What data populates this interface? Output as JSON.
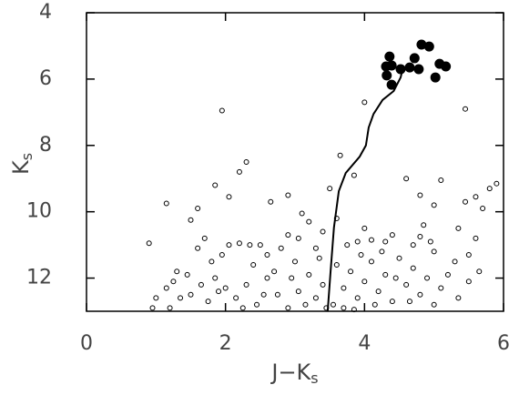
{
  "chart_data": {
    "type": "scatter",
    "xlabel": {
      "main": "J−K",
      "sub": "s"
    },
    "ylabel": {
      "main": "K",
      "sub": "s"
    },
    "xlim": [
      0,
      6
    ],
    "xticks": [
      0,
      2,
      4,
      6
    ],
    "ylim": [
      13,
      4
    ],
    "yticks": [
      4,
      6,
      8,
      10,
      12
    ],
    "series": [
      {
        "marker": "open",
        "color": "#000000",
        "x": [
          0.9,
          1.15,
          1.5,
          1.6,
          1.95,
          2.2,
          2.3,
          2.05,
          1.85,
          2.65,
          2.9,
          3.1,
          3.5,
          3.65,
          4.0,
          3.85,
          4.6,
          4.8,
          5.0,
          5.1,
          5.35,
          5.45,
          5.6,
          5.8,
          5.9,
          5.45,
          5.7,
          5.6,
          5.5,
          5.3,
          5.0,
          4.85,
          4.8,
          4.95,
          4.7,
          4.4,
          4.3,
          4.1,
          4.0,
          3.9,
          3.75,
          3.6,
          3.4,
          3.3,
          3.2,
          3.05,
          2.9,
          2.8,
          2.6,
          2.5,
          2.35,
          2.2,
          2.05,
          1.95,
          1.8,
          1.7,
          1.6,
          1.45,
          1.3,
          1.25,
          1.15,
          1.0,
          0.95,
          1.2,
          1.5,
          1.65,
          1.85,
          2.0,
          2.15,
          2.3,
          2.45,
          2.6,
          2.75,
          2.9,
          3.05,
          3.2,
          3.3,
          3.4,
          3.55,
          3.6,
          3.7,
          3.8,
          3.9,
          4.0,
          4.1,
          4.2,
          4.3,
          4.4,
          4.5,
          4.6,
          4.7,
          4.8,
          4.9,
          5.0,
          5.1,
          5.2,
          5.35,
          5.5,
          5.65,
          3.35,
          3.45,
          3.85,
          4.15,
          2.55,
          1.35,
          1.75,
          2.4,
          2.7,
          3.0,
          3.15,
          4.45,
          4.65,
          4.25,
          3.95,
          3.7,
          2.95,
          2.25,
          1.9
        ],
        "values": [
          10.95,
          9.75,
          10.25,
          9.9,
          6.95,
          8.8,
          8.5,
          9.55,
          9.2,
          9.7,
          9.5,
          10.05,
          9.3,
          8.3,
          6.7,
          8.9,
          9.0,
          9.5,
          9.8,
          9.05,
          10.5,
          9.7,
          9.55,
          9.3,
          9.15,
          6.9,
          9.9,
          10.8,
          11.3,
          11.5,
          11.2,
          10.4,
          10.75,
          10.9,
          11.0,
          10.7,
          10.9,
          10.85,
          10.5,
          10.9,
          11.0,
          10.2,
          10.6,
          11.1,
          10.3,
          10.8,
          10.7,
          11.1,
          11.3,
          11.0,
          11.0,
          10.95,
          11.0,
          11.3,
          11.5,
          10.8,
          11.1,
          11.9,
          11.8,
          12.1,
          12.3,
          12.6,
          12.9,
          12.9,
          12.5,
          12.2,
          12.0,
          12.3,
          12.6,
          12.2,
          12.8,
          12.0,
          12.5,
          12.9,
          12.4,
          11.9,
          12.6,
          12.2,
          12.8,
          11.6,
          12.3,
          11.8,
          12.6,
          12.1,
          11.5,
          12.4,
          11.9,
          12.7,
          11.4,
          12.2,
          11.7,
          12.5,
          12.0,
          12.8,
          12.3,
          11.9,
          12.6,
          12.1,
          11.8,
          11.4,
          12.9,
          12.95,
          12.8,
          12.5,
          12.6,
          12.7,
          11.6,
          11.8,
          11.5,
          12.8,
          12.0,
          12.7,
          11.2,
          11.3,
          12.9,
          12.0,
          12.9,
          12.4
        ]
      },
      {
        "marker": "filled",
        "color": "#000000",
        "x": [
          4.36,
          4.72,
          4.82,
          4.93,
          4.31,
          4.39,
          4.52,
          4.65,
          4.78,
          4.32,
          4.39,
          5.02,
          5.08,
          5.17
        ],
        "values": [
          5.32,
          5.37,
          4.96,
          5.02,
          5.62,
          5.59,
          5.7,
          5.65,
          5.7,
          5.89,
          6.17,
          5.95,
          5.54,
          5.62
        ]
      },
      {
        "marker": "line",
        "color": "#000000",
        "x": [
          3.47,
          3.51,
          3.56,
          3.63,
          3.73,
          3.93,
          4.02,
          4.06,
          4.13,
          4.26,
          4.42,
          4.52,
          4.56
        ],
        "values": [
          13,
          11.85,
          10.48,
          9.38,
          8.83,
          8.34,
          8.0,
          7.46,
          7.05,
          6.63,
          6.36,
          5.95,
          5.59
        ]
      }
    ]
  }
}
